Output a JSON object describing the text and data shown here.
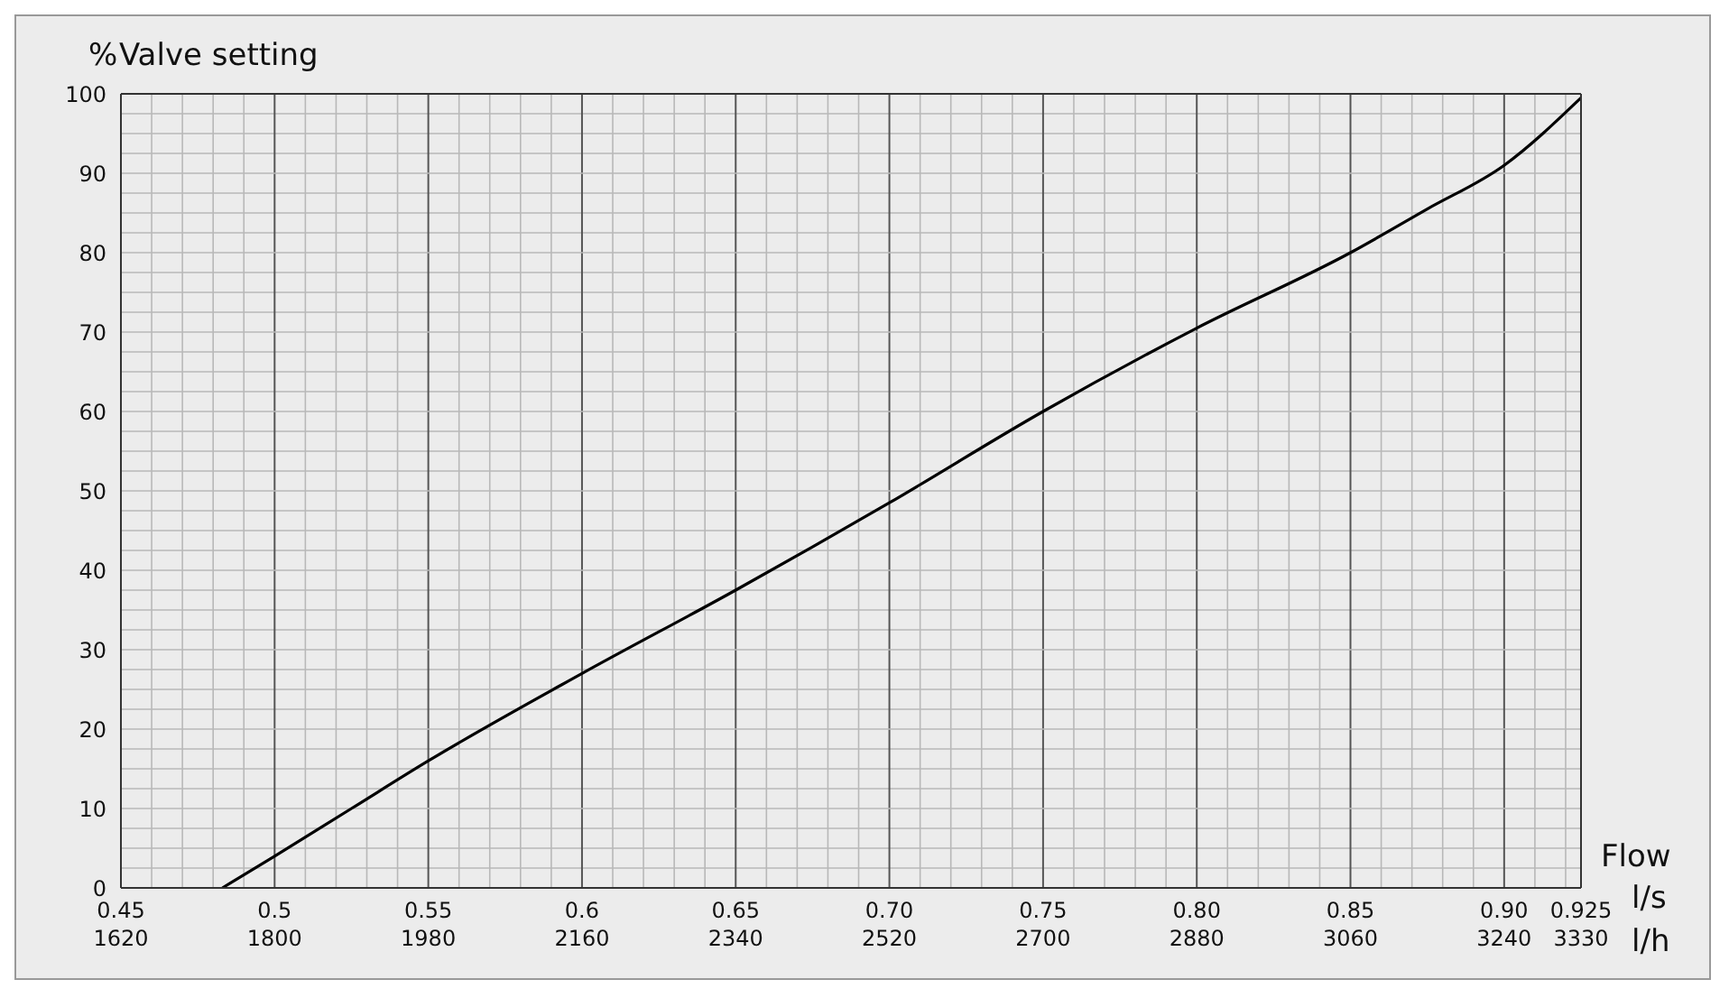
{
  "chart_data": {
    "type": "line",
    "title": "Valve setting",
    "ylabel": "%",
    "xlabel": "l/s",
    "x2label": "l/h",
    "annotations": [
      "Flow"
    ],
    "grid": true,
    "marker": "none",
    "line_style": "solid",
    "legend": false,
    "xlim": [
      0.45,
      0.925
    ],
    "xticks": [
      0.45,
      {
        "value": 0.46,
        "label": null
      },
      {
        "value": 0.47,
        "label": null
      },
      {
        "value": 0.48,
        "label": null
      },
      {
        "value": 0.49,
        "label": null
      },
      0.5,
      {
        "value": 0.51,
        "label": null
      },
      {
        "value": 0.52,
        "label": null
      },
      {
        "value": 0.53,
        "label": null
      },
      {
        "value": 0.54,
        "label": null
      },
      0.55,
      {
        "value": 0.56,
        "label": null
      },
      {
        "value": 0.57,
        "label": null
      },
      {
        "value": 0.58,
        "label": null
      },
      {
        "value": 0.59,
        "label": null
      },
      0.6,
      {
        "value": 0.61,
        "label": null
      },
      {
        "value": 0.62,
        "label": null
      },
      {
        "value": 0.63,
        "label": null
      },
      {
        "value": 0.64,
        "label": null
      },
      0.65,
      {
        "value": 0.66,
        "label": null
      },
      {
        "value": 0.67,
        "label": null
      },
      {
        "value": 0.68,
        "label": null
      },
      {
        "value": 0.69,
        "label": null
      },
      {
        "value": 0.7,
        "label": "0.70"
      },
      {
        "value": 0.71,
        "label": null
      },
      {
        "value": 0.72,
        "label": null
      },
      {
        "value": 0.73,
        "label": null
      },
      {
        "value": 0.74,
        "label": null
      },
      0.75,
      {
        "value": 0.76,
        "label": null
      },
      {
        "value": 0.77,
        "label": null
      },
      {
        "value": 0.78,
        "label": null
      },
      {
        "value": 0.79,
        "label": null
      },
      {
        "value": 0.8,
        "label": "0.80"
      },
      {
        "value": 0.81,
        "label": null
      },
      {
        "value": 0.82,
        "label": null
      },
      {
        "value": 0.83,
        "label": null
      },
      {
        "value": 0.84,
        "label": null
      },
      0.85,
      {
        "value": 0.86,
        "label": null
      },
      {
        "value": 0.87,
        "label": null
      },
      {
        "value": 0.88,
        "label": null
      },
      {
        "value": 0.89,
        "label": null
      },
      {
        "value": 0.9,
        "label": "0.90"
      },
      {
        "value": 0.91,
        "label": null
      },
      {
        "value": 0.92,
        "label": null
      },
      0.925
    ],
    "x2lim": [
      1620,
      3330
    ],
    "x2ticks": [
      1620,
      1800,
      1980,
      2160,
      2340,
      2520,
      2700,
      2880,
      3060,
      3240,
      3330
    ],
    "ylim": [
      0,
      100
    ],
    "yticks": [
      0,
      {
        "value": 2.5,
        "label": null
      },
      {
        "value": 5,
        "label": null
      },
      {
        "value": 7.5,
        "label": null
      },
      10,
      {
        "value": 12.5,
        "label": null
      },
      {
        "value": 15,
        "label": null
      },
      {
        "value": 17.5,
        "label": null
      },
      20,
      {
        "value": 22.5,
        "label": null
      },
      {
        "value": 25,
        "label": null
      },
      {
        "value": 27.5,
        "label": null
      },
      30,
      {
        "value": 32.5,
        "label": null
      },
      {
        "value": 35,
        "label": null
      },
      {
        "value": 37.5,
        "label": null
      },
      40,
      {
        "value": 42.5,
        "label": null
      },
      {
        "value": 45,
        "label": null
      },
      {
        "value": 47.5,
        "label": null
      },
      50,
      {
        "value": 52.5,
        "label": null
      },
      {
        "value": 55,
        "label": null
      },
      {
        "value": 57.5,
        "label": null
      },
      60,
      {
        "value": 62.5,
        "label": null
      },
      {
        "value": 65,
        "label": null
      },
      {
        "value": 67.5,
        "label": null
      },
      70,
      {
        "value": 72.5,
        "label": null
      },
      {
        "value": 75,
        "label": null
      },
      {
        "value": 77.5,
        "label": null
      },
      80,
      {
        "value": 82.5,
        "label": null
      },
      {
        "value": 85,
        "label": null
      },
      {
        "value": 87.5,
        "label": null
      },
      90,
      {
        "value": 92.5,
        "label": null
      },
      {
        "value": 95,
        "label": null
      },
      {
        "value": 97.5,
        "label": null
      },
      100
    ],
    "series": [
      {
        "color": "#000000",
        "x": [
          0.483,
          0.5,
          0.525,
          0.55,
          0.6,
          0.65,
          0.7,
          0.75,
          0.8,
          0.85,
          0.875,
          0.9,
          0.925
        ],
        "values": [
          0,
          4,
          10,
          16,
          27,
          37.5,
          48.5,
          60,
          70.5,
          80,
          85.5,
          91,
          99.5
        ]
      }
    ]
  }
}
